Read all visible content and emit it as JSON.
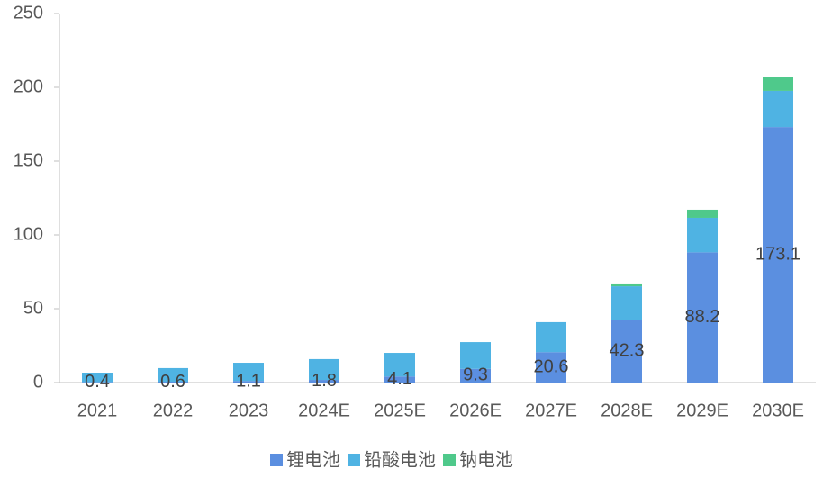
{
  "chart_data": {
    "type": "stacked-bar",
    "categories": [
      "2021",
      "2022",
      "2023",
      "2024E",
      "2025E",
      "2026E",
      "2027E",
      "2028E",
      "2029E",
      "2030E"
    ],
    "series": [
      {
        "name": "锂电池",
        "color": "#5b8fe0",
        "values": [
          0.4,
          0.6,
          1.1,
          1.8,
          4.1,
          9.3,
          20.6,
          42.3,
          88.2,
          173.1
        ]
      },
      {
        "name": "铅酸电池",
        "color": "#4fb3e3",
        "values": [
          6.3,
          9.2,
          12.3,
          14.1,
          16,
          18.1,
          20.3,
          22.9,
          23.4,
          24.5
        ]
      },
      {
        "name": "钠电池",
        "color": "#4fc98b",
        "values": [
          0,
          0,
          0,
          0,
          0,
          0,
          0,
          1.9,
          5.5,
          9.7
        ]
      }
    ],
    "value_labels_series": 0,
    "ylim": [
      0,
      250
    ],
    "yticks": [
      0,
      50,
      100,
      150,
      200,
      250
    ],
    "grid": false
  }
}
